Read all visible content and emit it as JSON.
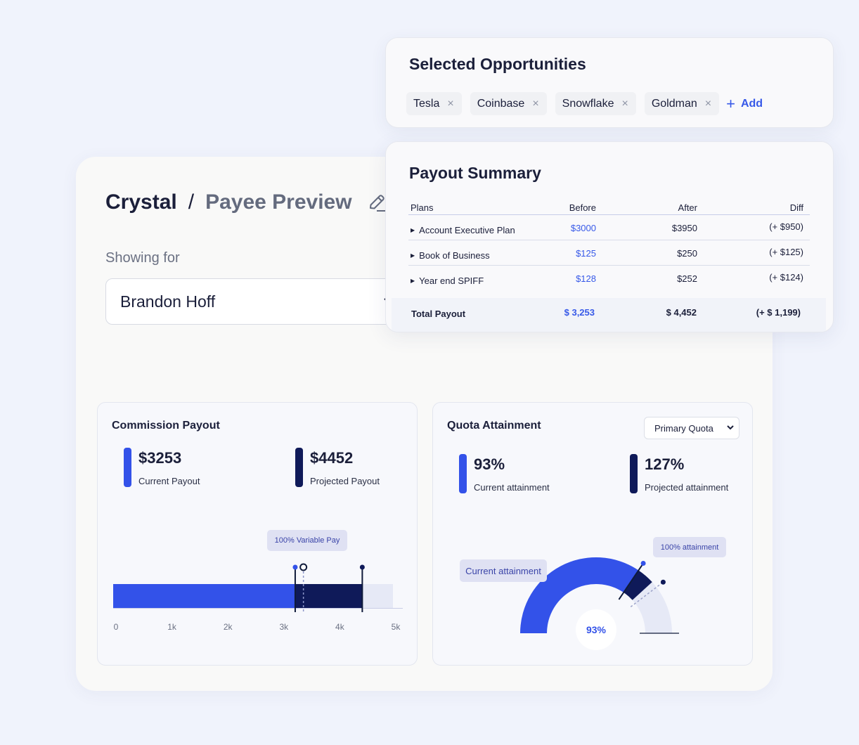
{
  "breadcrumb": {
    "root": "Crystal",
    "separator": "/",
    "page": "Payee Preview"
  },
  "showing_for": {
    "label": "Showing for",
    "value": "Brandon Hoff"
  },
  "opportunities": {
    "title": "Selected Opportunities",
    "chips": [
      "Tesla",
      "Coinbase",
      "Snowflake",
      "Goldman"
    ],
    "remove_glyph": "×",
    "add_label": "Add"
  },
  "payout_summary": {
    "title": "Payout Summary",
    "columns": [
      "Plans",
      "Before",
      "After",
      "Diff"
    ],
    "rows": [
      {
        "plan": "Account Executive Plan",
        "before": "$3000",
        "after": "$3950",
        "diff": "(+ $950)"
      },
      {
        "plan": "Book of Business",
        "before": "$125",
        "after": "$250",
        "diff": "(+ $125)"
      },
      {
        "plan": "Year end SPIFF",
        "before": "$128",
        "after": "$252",
        "diff": "(+ $124)"
      }
    ],
    "total": {
      "label": "Total Payout",
      "before": "$ 3,253",
      "after": "$ 4,452",
      "diff": "(+ $ 1,199)"
    }
  },
  "commission": {
    "title": "Commission Payout",
    "current": {
      "value": "$3253",
      "label": "Current Payout"
    },
    "projected": {
      "value": "$4452",
      "label": "Projected Payout"
    },
    "tooltip": "100% Variable Pay"
  },
  "quota": {
    "title": "Quota Attainment",
    "selector": "Primary Quota",
    "current": {
      "value": "93%",
      "label": "Current attainment"
    },
    "projected": {
      "value": "127%",
      "label": "Projected attainment"
    },
    "tooltip_current": "Current attainment",
    "tooltip_target": "100% attainment",
    "center_label": "93%"
  },
  "colors": {
    "accent": "#3352e9",
    "dark": "#0f1a59",
    "track": "#e6e9f6",
    "tooltip_bg": "#dfe1f3"
  },
  "chart_data": [
    {
      "type": "bar",
      "orientation": "horizontal",
      "title": "Commission Payout",
      "xlim": [
        0,
        5000
      ],
      "tick_labels": [
        "0",
        "1k",
        "2k",
        "3k",
        "4k",
        "5k"
      ],
      "series": [
        {
          "name": "Current Payout",
          "values": [
            3253
          ]
        },
        {
          "name": "Projected Payout",
          "values": [
            4452
          ]
        }
      ],
      "markers": {
        "variable_pay_100": 3400
      },
      "annotation": "100% Variable Pay"
    },
    {
      "type": "gauge",
      "title": "Quota Attainment",
      "scale_max_percent": 135,
      "series": [
        {
          "name": "Current attainment",
          "values": [
            93
          ]
        },
        {
          "name": "Projected attainment",
          "values": [
            127
          ]
        }
      ],
      "target_percent": 100,
      "annotations": [
        "Current attainment",
        "100% attainment"
      ],
      "center_label": "93%"
    }
  ]
}
